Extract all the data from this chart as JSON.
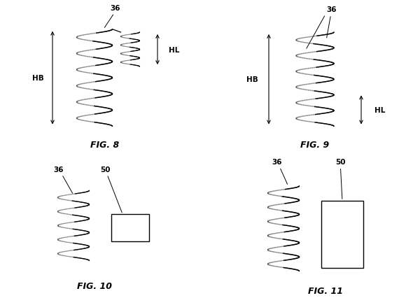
{
  "fig_labels": [
    "FIG. 8",
    "FIG. 9",
    "FIG. 10",
    "FIG. 11"
  ],
  "label_36": "36",
  "label_50": "50",
  "label_HB": "HB",
  "label_HL": "HL",
  "bg_color": "#ffffff",
  "line_color": "#000000",
  "fig_label_fontsize": 9,
  "annotation_fontsize": 7.5
}
